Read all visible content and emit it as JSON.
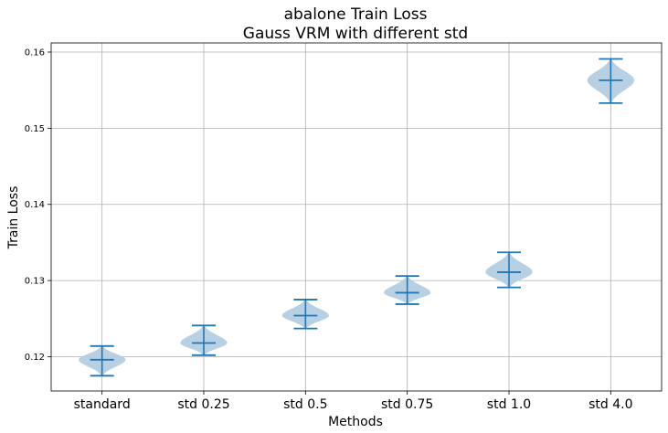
{
  "chart_data": {
    "type": "violin",
    "title_line1": "abalone Train Loss",
    "title_line2": "Gauss VRM with different std",
    "xlabel": "Methods",
    "ylabel": "Train Loss",
    "ylim": [
      0.1155,
      0.1612
    ],
    "yticks": [
      0.12,
      0.13,
      0.14,
      0.15,
      0.16
    ],
    "ytick_labels": [
      "0.12",
      "0.13",
      "0.14",
      "0.15",
      "0.16"
    ],
    "grid": true,
    "colors": {
      "body": "#b3cde3",
      "line": "#1f77b4"
    },
    "categories": [
      "standard",
      "std 0.25",
      "std 0.5",
      "std 0.75",
      "std 1.0",
      "std 4.0"
    ],
    "distributions": [
      {
        "min": 0.1175,
        "mean": 0.1196,
        "max": 0.1214
      },
      {
        "min": 0.1202,
        "mean": 0.1218,
        "max": 0.1241
      },
      {
        "min": 0.1237,
        "mean": 0.1254,
        "max": 0.1275
      },
      {
        "min": 0.1269,
        "mean": 0.1284,
        "max": 0.1306
      },
      {
        "min": 0.1291,
        "mean": 0.1311,
        "max": 0.1337
      },
      {
        "min": 0.1533,
        "mean": 0.1563,
        "max": 0.1591
      }
    ]
  }
}
